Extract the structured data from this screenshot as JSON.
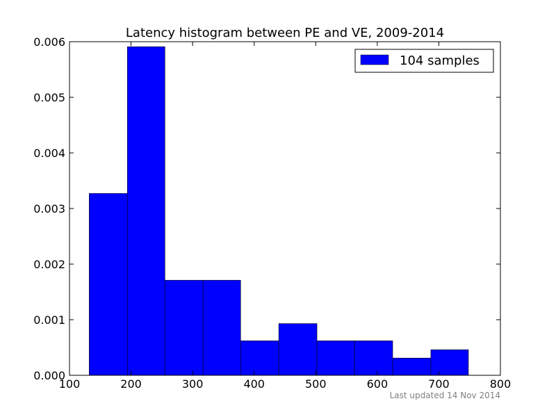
{
  "chart_data": {
    "type": "bar",
    "title": "Latency histogram between PE and VE, 2009-2014",
    "xlabel": "",
    "ylabel": "",
    "xlim": [
      100,
      800
    ],
    "ylim": [
      0,
      0.006
    ],
    "x_ticks": [
      "100",
      "200",
      "300",
      "400",
      "500",
      "600",
      "700",
      "800"
    ],
    "y_ticks": [
      "0.000",
      "0.001",
      "0.002",
      "0.003",
      "0.004",
      "0.005",
      "0.006"
    ],
    "bin_edges": [
      132,
      194,
      255,
      317,
      378,
      440,
      502,
      563,
      625,
      687,
      748
    ],
    "values": [
      0.00327,
      0.00591,
      0.00171,
      0.00171,
      0.00062,
      0.00093,
      0.00062,
      0.00062,
      0.00031,
      0.00046
    ],
    "series": [
      {
        "name": "104 samples",
        "color": "#0000ff"
      }
    ],
    "legend_position": "top-right",
    "grid": false
  },
  "footer": {
    "note": "Last updated 14 Nov 2014"
  }
}
